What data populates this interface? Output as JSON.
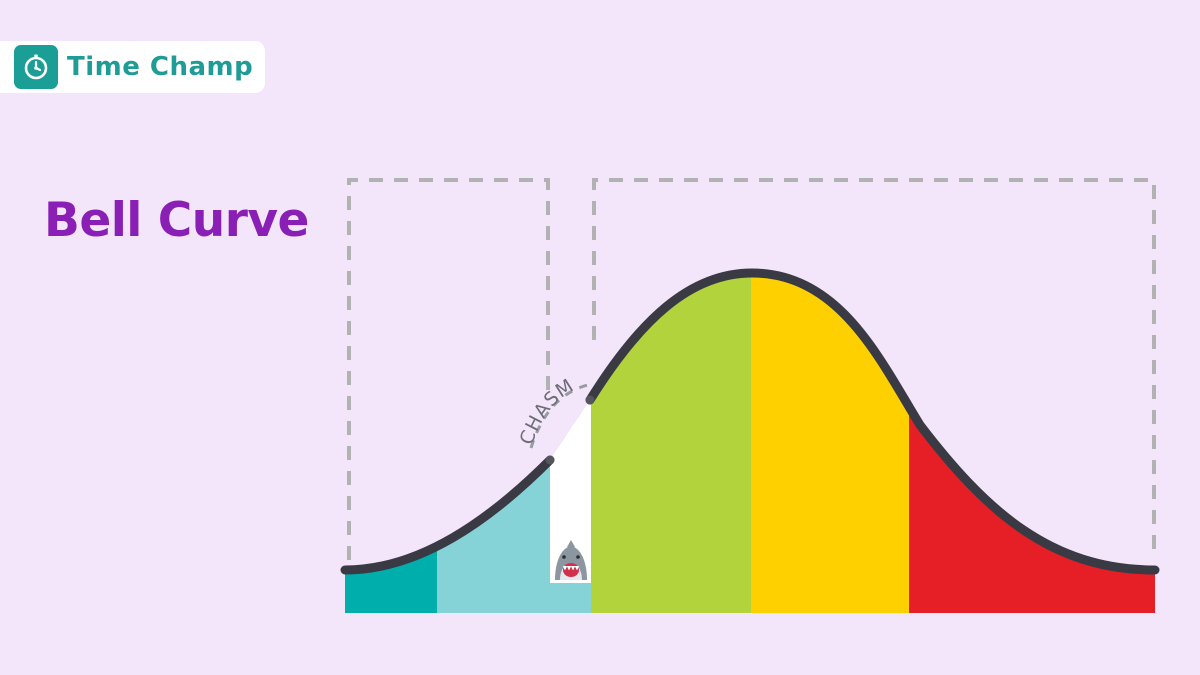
{
  "brand": {
    "name": "Time Champ",
    "icon": "stopwatch-icon",
    "color": "#1a9e96"
  },
  "title": "Bell Curve",
  "diagram": {
    "chasm_label": "CHASM",
    "segment_colors": [
      "#00aeab",
      "#85d3d6",
      "#b2d33c",
      "#ffd000",
      "#e61f26"
    ],
    "chasm_gap_color": "#ffffff",
    "curve_color": "#3a3a44",
    "frame_color": "#b2b2b2",
    "shark_icon": "shark-icon"
  }
}
